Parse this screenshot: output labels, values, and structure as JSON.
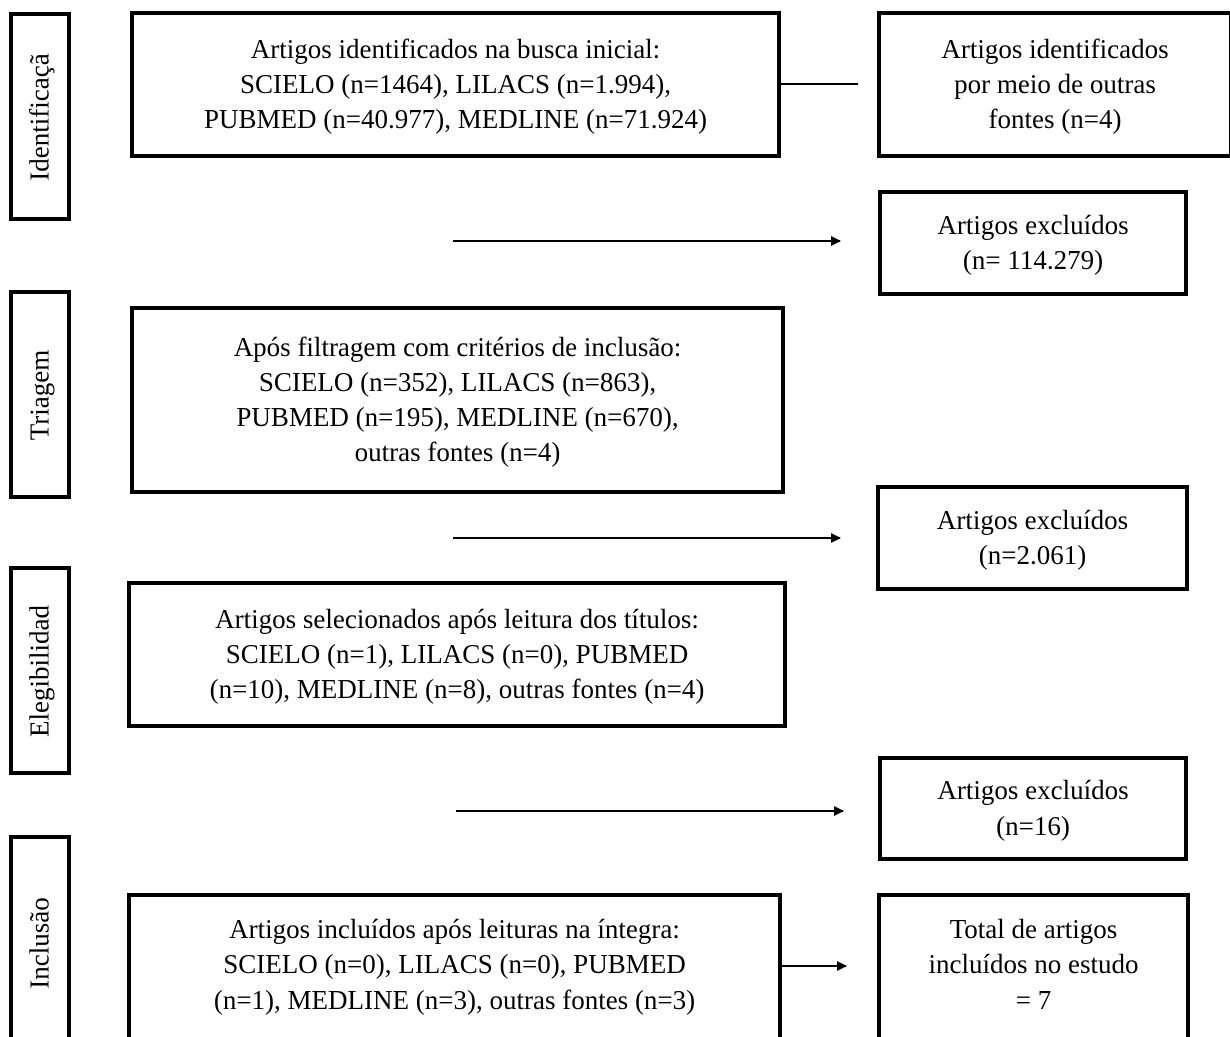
{
  "stages": {
    "identificacao": "Identificaçã",
    "triagem": "Triagem",
    "elegibilidade": "Elegibilidad",
    "inclusao": "Inclusão"
  },
  "boxes": {
    "busca_inicial": [
      "Artigos identificados na busca inicial:",
      "SCIELO (n=1464), LILACS (n=1.994),",
      "PUBMED (n=40.977), MEDLINE (n=71.924)"
    ],
    "outras_fontes": [
      "Artigos identificados",
      "por meio de outras",
      "fontes (n=4)"
    ],
    "excluidos_1": [
      "Artigos excluídos",
      "(n= 114.279)"
    ],
    "filtragem": [
      "Após filtragem com critérios de inclusão:",
      "SCIELO (n=352), LILACS (n=863),",
      "PUBMED (n=195), MEDLINE (n=670),",
      "outras fontes (n=4)"
    ],
    "excluidos_2": [
      "Artigos excluídos",
      "(n=2.061)"
    ],
    "selecionados": [
      "Artigos selecionados após leitura dos títulos:",
      "SCIELO (n=1), LILACS (n=0), PUBMED",
      "(n=10), MEDLINE (n=8), outras fontes (n=4)"
    ],
    "excluidos_3": [
      "Artigos excluídos",
      "(n=16)"
    ],
    "incluidos": [
      "Artigos incluídos após leituras na íntegra:",
      "SCIELO (n=0), LILACS (n=0), PUBMED",
      "(n=1), MEDLINE (n=3), outras fontes (n=3)"
    ],
    "total": [
      "Total de artigos",
      "incluídos no estudo",
      "= 7"
    ]
  }
}
